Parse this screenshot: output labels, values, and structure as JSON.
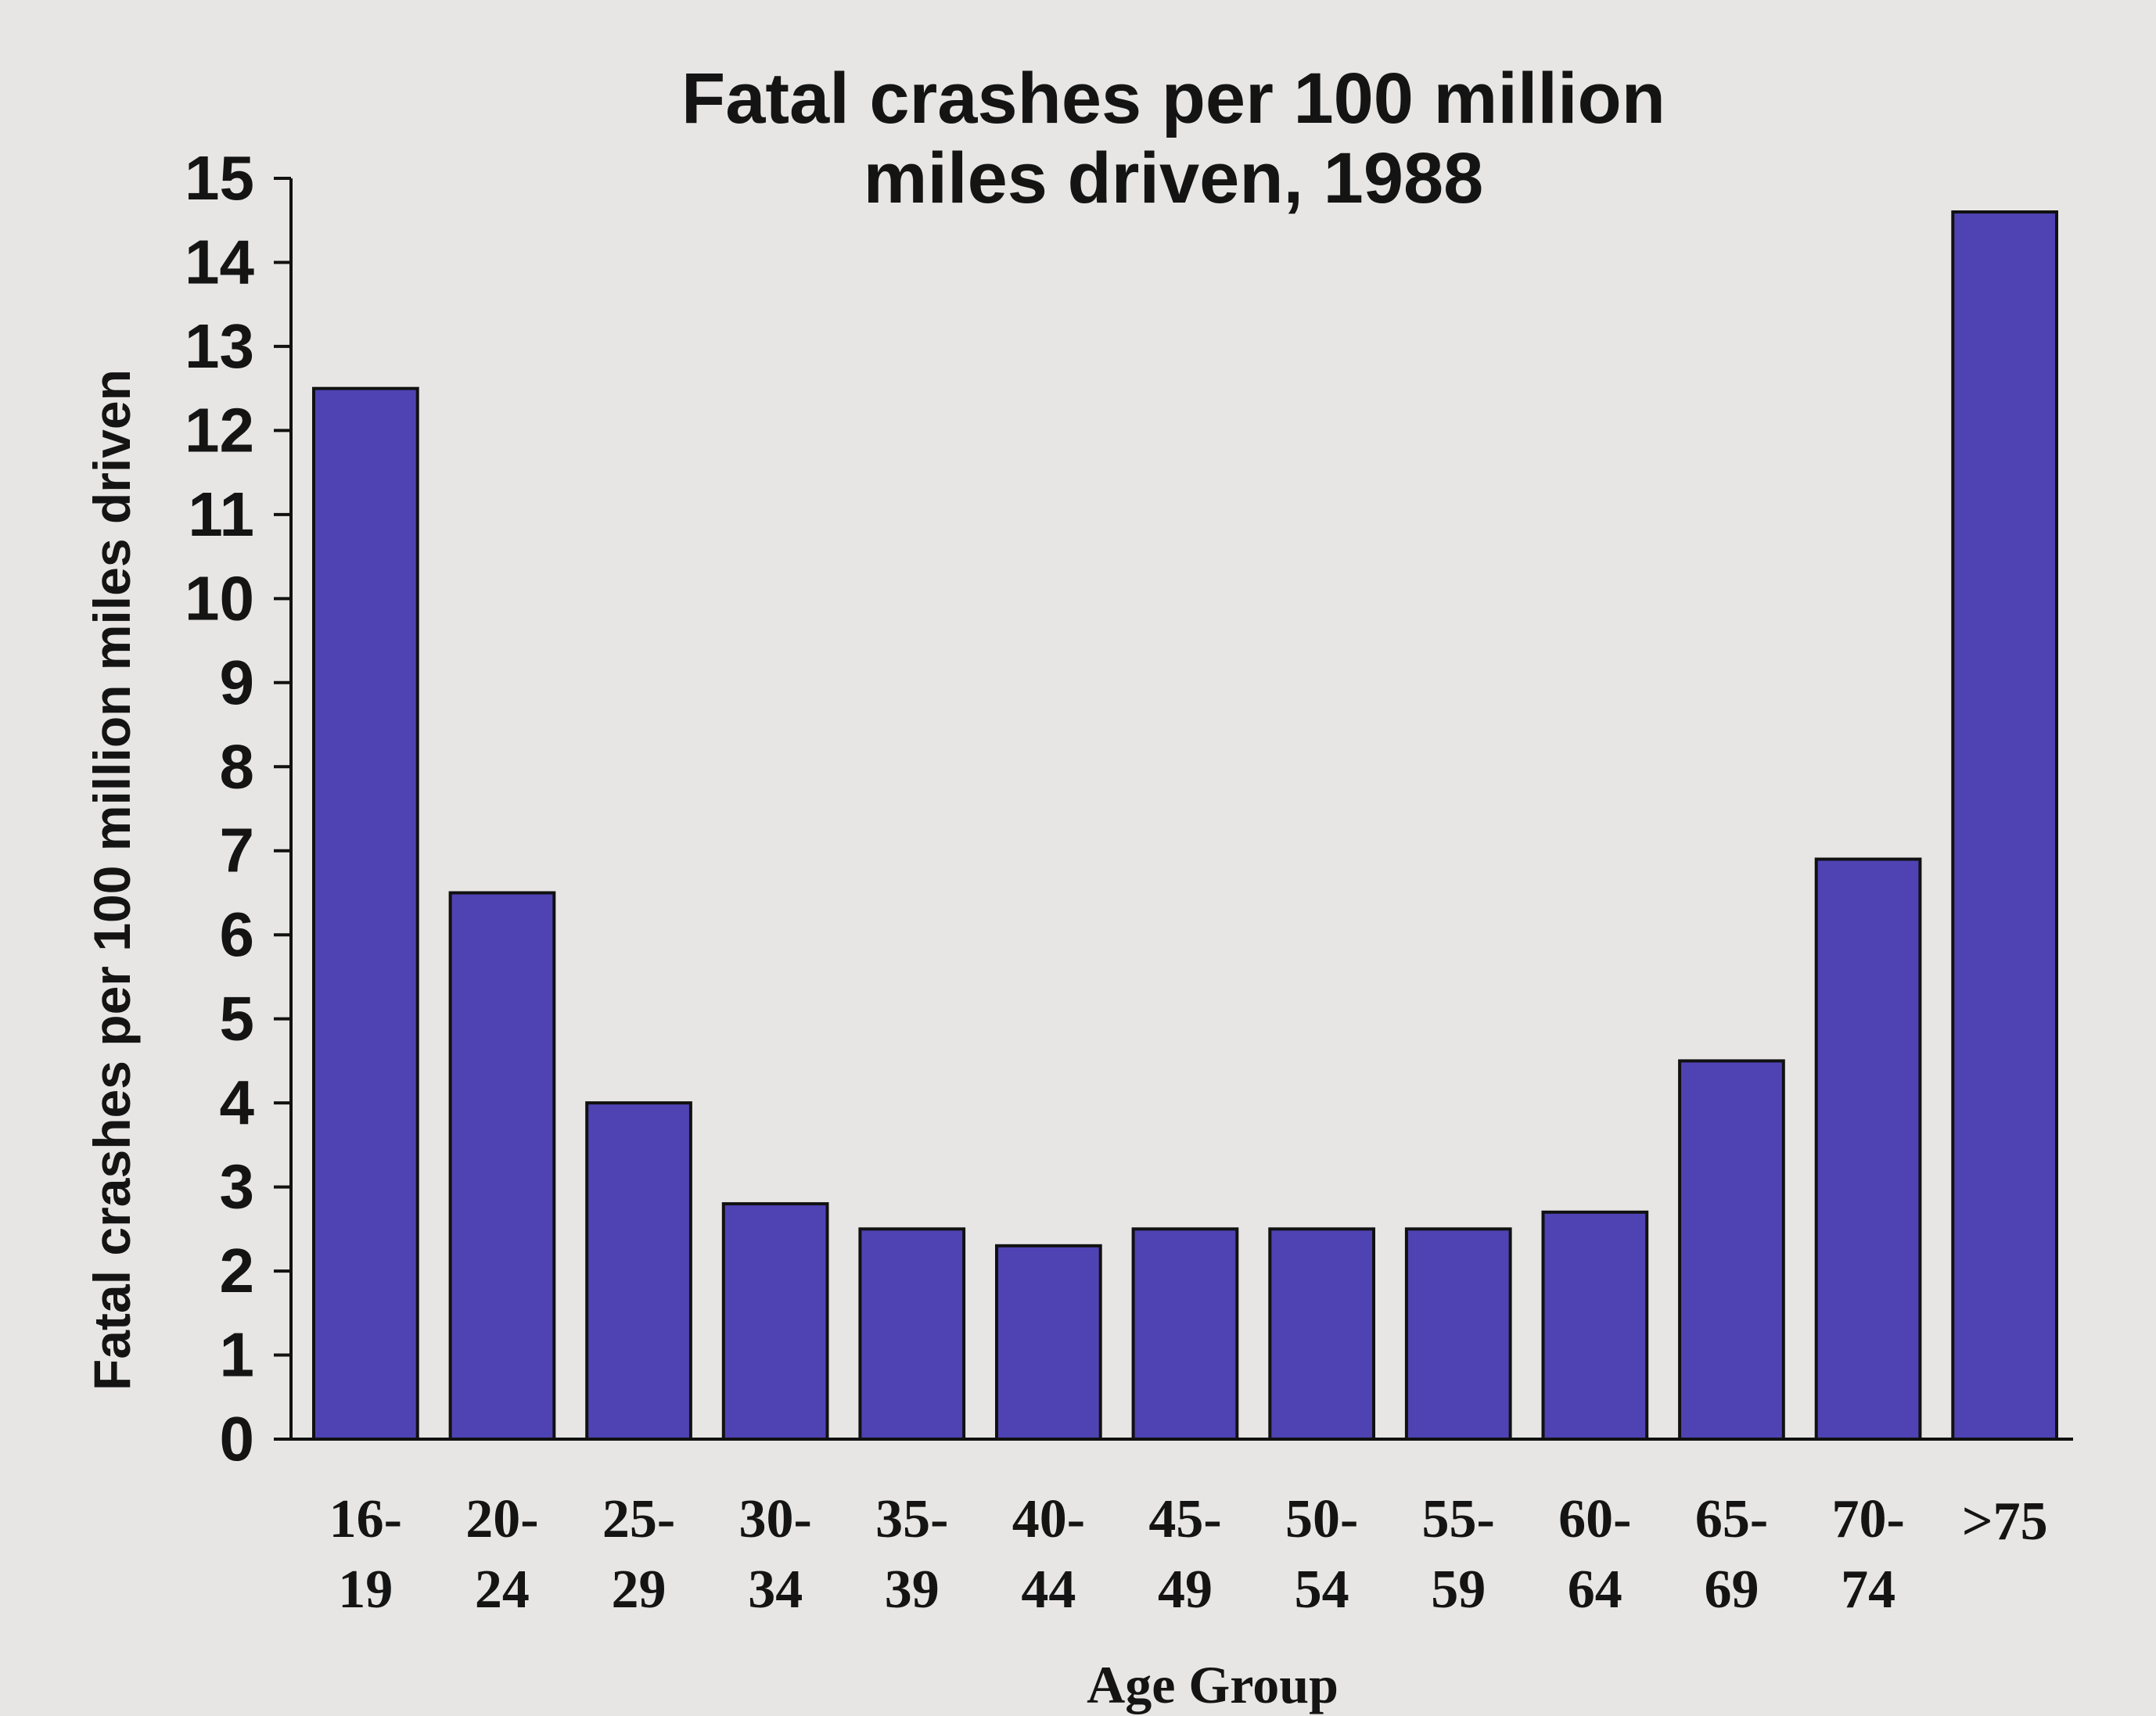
{
  "chart_data": {
    "type": "bar",
    "title_lines": [
      "Fatal crashes per 100 million",
      "miles driven, 1988"
    ],
    "title": "Fatal crashes per 100 million miles driven, 1988",
    "xlabel": "Age Group",
    "ylabel": "Fatal crashes per 100 million miles driven",
    "categories": [
      [
        "16-",
        "19"
      ],
      [
        "20-",
        "24"
      ],
      [
        "25-",
        "29"
      ],
      [
        "30-",
        "34"
      ],
      [
        "35-",
        "39"
      ],
      [
        "40-",
        "44"
      ],
      [
        "45-",
        "49"
      ],
      [
        "50-",
        "54"
      ],
      [
        "55-",
        "59"
      ],
      [
        "60-",
        "64"
      ],
      [
        "65-",
        "69"
      ],
      [
        "70-",
        "74"
      ],
      [
        ">75"
      ]
    ],
    "values": [
      12.5,
      6.5,
      4.0,
      2.8,
      2.5,
      2.3,
      2.5,
      2.5,
      2.5,
      2.7,
      4.5,
      6.9,
      14.6
    ],
    "ylim": [
      0,
      15
    ],
    "yticks": [
      0,
      1,
      2,
      3,
      4,
      5,
      6,
      7,
      8,
      9,
      10,
      11,
      12,
      13,
      14,
      15
    ],
    "grid": false,
    "bar_color": "#4f43b4",
    "text_color": "#141414"
  }
}
